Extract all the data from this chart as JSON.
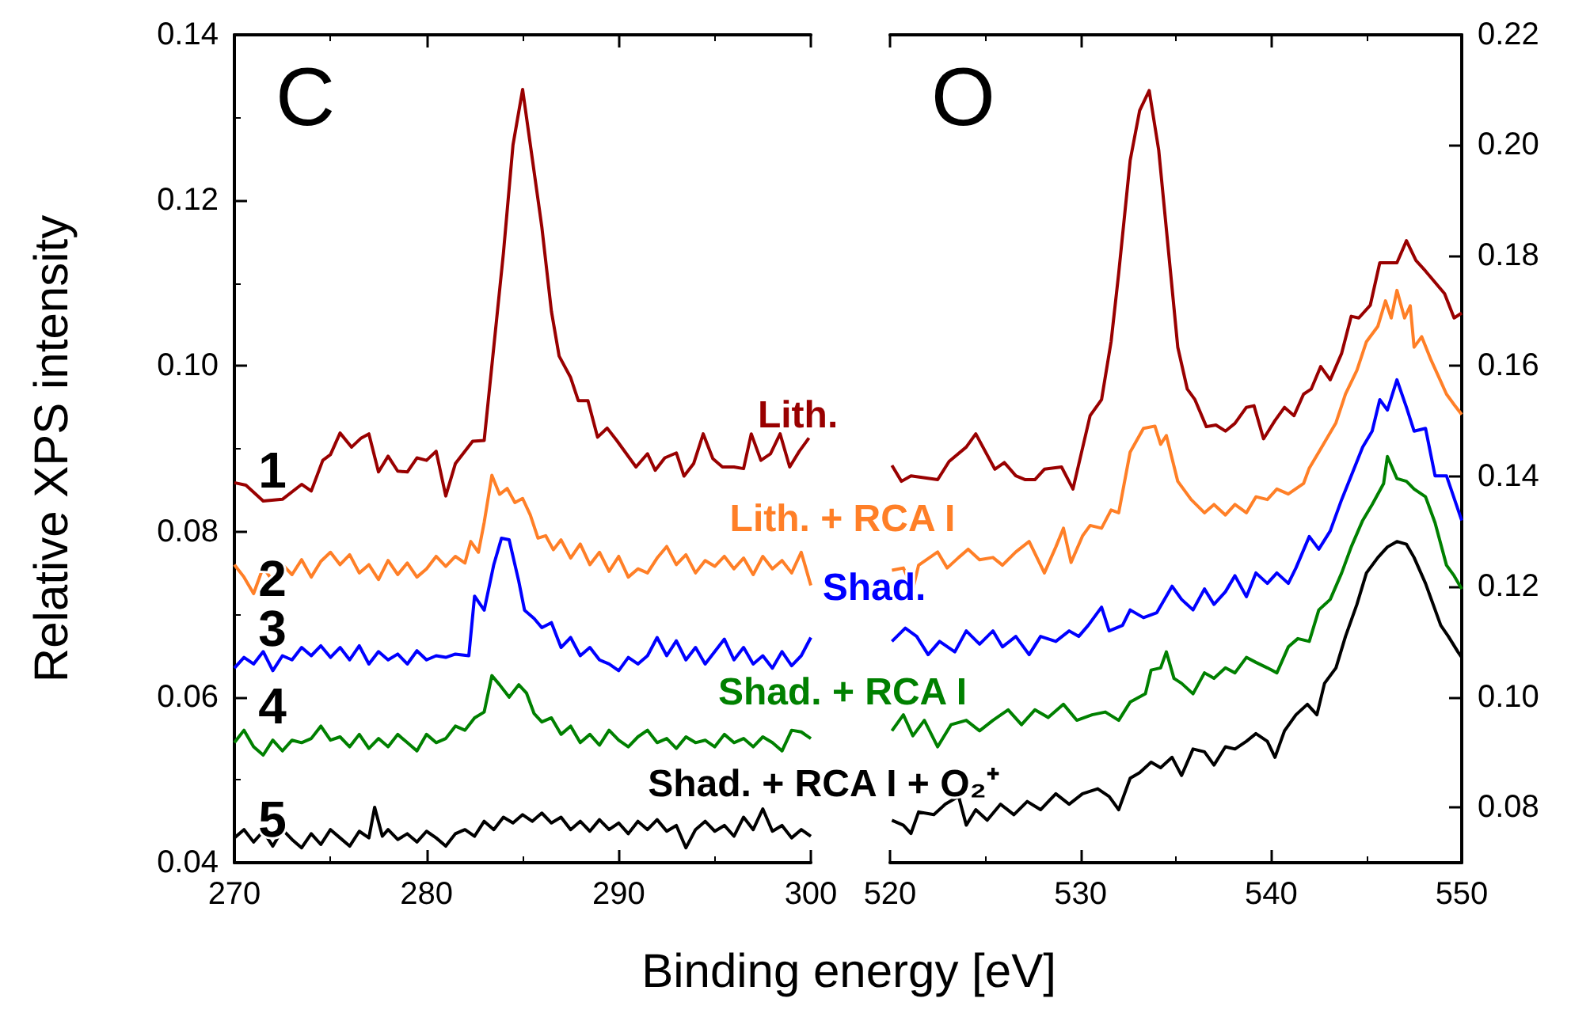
{
  "chart_data": [
    {
      "type": "line",
      "title": "C",
      "xlabel": "Binding energy [eV]",
      "ylabel": "Relative XPS intensity",
      "xlim": [
        270,
        300
      ],
      "xticks": [
        270,
        280,
        290,
        300
      ],
      "ylim": [
        0.04,
        0.14
      ],
      "yticks": [
        0.04,
        0.06,
        0.08,
        {
          "value": 0.1,
          "label": "0.10"
        },
        0.12,
        0.14
      ],
      "annotations": [
        "1",
        "2",
        "3",
        "4",
        "5"
      ],
      "series": [
        {
          "name": "Lith.",
          "color": "#990000",
          "x": [
            270.0,
            270.6,
            271.5,
            272.5,
            273.5,
            274.0,
            274.6,
            275.0,
            275.5,
            276.1,
            276.6,
            277.0,
            277.5,
            278.0,
            278.5,
            279.0,
            279.5,
            280.0,
            280.5,
            281.0,
            281.5,
            282.4,
            283.0,
            284.0,
            284.5,
            285.0,
            285.5,
            286.0,
            286.5,
            286.9,
            287.5,
            287.9,
            288.4,
            288.9,
            289.4,
            289.9,
            290.9,
            291.5,
            291.9,
            292.4,
            293.0,
            293.4,
            293.9,
            294.4,
            294.9,
            295.4,
            296.0,
            296.5,
            296.9,
            297.4,
            297.9,
            298.4,
            298.9,
            299.4,
            299.9
          ],
          "values": [
            0.0859,
            0.0856,
            0.0837,
            0.0839,
            0.0857,
            0.0849,
            0.0886,
            0.0893,
            0.0919,
            0.0902,
            0.0913,
            0.0918,
            0.0872,
            0.0891,
            0.0873,
            0.0872,
            0.0889,
            0.0886,
            0.0897,
            0.0843,
            0.0882,
            0.0909,
            0.091,
            0.1136,
            0.1267,
            0.1334,
            0.1251,
            0.1168,
            0.1066,
            0.1012,
            0.0986,
            0.0958,
            0.0958,
            0.0914,
            0.0925,
            0.091,
            0.0878,
            0.0894,
            0.0874,
            0.0889,
            0.0895,
            0.0867,
            0.0882,
            0.0918,
            0.0888,
            0.0878,
            0.0878,
            0.0876,
            0.0918,
            0.0886,
            0.0894,
            0.0918,
            0.0878,
            0.0897,
            0.0913
          ]
        },
        {
          "name": "Lith. + RCA I",
          "color": "#ff7f27",
          "x": [
            270,
            270.5,
            271,
            271.5,
            272,
            272.5,
            273,
            273.5,
            274,
            274.5,
            275,
            275.5,
            276,
            276.5,
            277,
            277.5,
            278,
            278.5,
            279,
            279.5,
            280,
            280.5,
            281,
            281.5,
            282,
            282.3,
            282.7,
            283,
            283.4,
            283.8,
            284.2,
            284.6,
            285,
            285.4,
            285.8,
            286.2,
            286.6,
            287,
            287.5,
            288,
            288.5,
            289,
            289.5,
            290,
            290.5,
            291,
            291.5,
            292,
            292.5,
            293,
            293.5,
            294,
            294.5,
            295,
            295.5,
            296,
            296.5,
            297,
            297.5,
            298,
            298.5,
            299,
            299.5,
            300
          ],
          "values": [
            0.076,
            0.0745,
            0.0725,
            0.0757,
            0.074,
            0.076,
            0.0748,
            0.0766,
            0.0745,
            0.0764,
            0.0775,
            0.076,
            0.0772,
            0.075,
            0.076,
            0.0742,
            0.0765,
            0.0748,
            0.0762,
            0.0745,
            0.0755,
            0.077,
            0.0758,
            0.077,
            0.0762,
            0.0788,
            0.0775,
            0.0811,
            0.0868,
            0.0845,
            0.0852,
            0.0835,
            0.084,
            0.082,
            0.0792,
            0.0795,
            0.0778,
            0.079,
            0.0768,
            0.0785,
            0.076,
            0.0775,
            0.0752,
            0.077,
            0.0745,
            0.0755,
            0.075,
            0.0768,
            0.0782,
            0.076,
            0.0772,
            0.075,
            0.0765,
            0.0758,
            0.077,
            0.0755,
            0.0768,
            0.0748,
            0.077,
            0.0755,
            0.0765,
            0.075,
            0.0775,
            0.0735
          ]
        },
        {
          "name": "Shad.",
          "color": "#0000ff",
          "x": [
            270,
            270.5,
            271,
            271.5,
            272,
            272.5,
            273,
            273.5,
            274,
            274.5,
            275,
            275.5,
            276,
            276.5,
            277,
            277.5,
            278,
            278.5,
            279,
            279.5,
            280,
            280.5,
            281,
            281.5,
            282.2,
            282.5,
            283,
            283.5,
            283.9,
            284.3,
            284.8,
            285.1,
            285.6,
            286,
            286.5,
            287,
            287.5,
            288,
            288.5,
            289,
            289.5,
            290,
            290.5,
            291,
            291.5,
            292,
            292.5,
            293,
            293.5,
            294,
            294.5,
            295,
            295.5,
            296,
            296.5,
            297,
            297.5,
            298,
            298.5,
            299,
            299.5,
            300
          ],
          "values": [
            0.0635,
            0.0648,
            0.064,
            0.0655,
            0.0632,
            0.065,
            0.0645,
            0.066,
            0.065,
            0.0662,
            0.0648,
            0.066,
            0.0645,
            0.0662,
            0.064,
            0.0655,
            0.0645,
            0.0652,
            0.064,
            0.0656,
            0.0645,
            0.065,
            0.0648,
            0.0652,
            0.065,
            0.0722,
            0.0705,
            0.076,
            0.0792,
            0.079,
            0.074,
            0.0705,
            0.0695,
            0.0684,
            0.069,
            0.066,
            0.0672,
            0.065,
            0.066,
            0.0645,
            0.064,
            0.0632,
            0.0648,
            0.064,
            0.065,
            0.0672,
            0.065,
            0.0668,
            0.0645,
            0.066,
            0.064,
            0.0655,
            0.067,
            0.0645,
            0.066,
            0.064,
            0.065,
            0.0635,
            0.0655,
            0.0638,
            0.065,
            0.0672
          ]
        },
        {
          "name": "Shad. + RCA I",
          "color": "#008000",
          "x": [
            270,
            270.5,
            271,
            271.5,
            272,
            272.5,
            273,
            273.5,
            274,
            274.5,
            275,
            275.5,
            276,
            276.5,
            277,
            277.5,
            278,
            278.5,
            279,
            279.5,
            280,
            280.5,
            281,
            281.5,
            282,
            282.5,
            283,
            283.4,
            283.8,
            284.3,
            284.8,
            285.2,
            285.6,
            286,
            286.5,
            287,
            287.5,
            288,
            288.5,
            289,
            289.5,
            290,
            290.5,
            291,
            291.5,
            292,
            292.5,
            293,
            293.5,
            294,
            294.5,
            295,
            295.5,
            296,
            296.5,
            297,
            297.5,
            298,
            298.5,
            299,
            299.5,
            300
          ],
          "values": [
            0.0545,
            0.056,
            0.054,
            0.053,
            0.0548,
            0.0535,
            0.0548,
            0.0545,
            0.055,
            0.0565,
            0.0548,
            0.0552,
            0.054,
            0.0555,
            0.0538,
            0.055,
            0.054,
            0.0555,
            0.0545,
            0.0535,
            0.0555,
            0.0545,
            0.055,
            0.0565,
            0.056,
            0.0575,
            0.0582,
            0.0626,
            0.0615,
            0.06,
            0.0615,
            0.0605,
            0.058,
            0.057,
            0.0575,
            0.0555,
            0.0565,
            0.0545,
            0.0555,
            0.0542,
            0.056,
            0.0548,
            0.054,
            0.0552,
            0.056,
            0.0545,
            0.055,
            0.0538,
            0.0552,
            0.0545,
            0.0548,
            0.054,
            0.0555,
            0.0545,
            0.055,
            0.054,
            0.0552,
            0.0545,
            0.0535,
            0.056,
            0.0558,
            0.055
          ]
        },
        {
          "name": "Shad. + RCA I + O₂⁺",
          "color": "#000000",
          "x": [
            270,
            270.5,
            271,
            271.5,
            272,
            272.5,
            273,
            273.5,
            274,
            274.5,
            275,
            275.5,
            276,
            276.5,
            277,
            277.3,
            277.7,
            278,
            278.5,
            279,
            279.5,
            280,
            280.5,
            281,
            281.5,
            282,
            282.5,
            283,
            283.5,
            284,
            284.5,
            285,
            285.5,
            286,
            286.5,
            287,
            287.5,
            288,
            288.5,
            289,
            289.5,
            290,
            290.5,
            291,
            291.5,
            292,
            292.5,
            293,
            293.5,
            294,
            294.5,
            295,
            295.5,
            296,
            296.5,
            297,
            297.5,
            298,
            298.5,
            299,
            299.5,
            300
          ],
          "values": [
            0.043,
            0.044,
            0.0425,
            0.0438,
            0.042,
            0.044,
            0.0428,
            0.0418,
            0.0435,
            0.0422,
            0.044,
            0.043,
            0.042,
            0.0438,
            0.043,
            0.0467,
            0.0432,
            0.044,
            0.0428,
            0.0435,
            0.0425,
            0.0438,
            0.043,
            0.042,
            0.0435,
            0.044,
            0.0432,
            0.045,
            0.044,
            0.0455,
            0.0448,
            0.0458,
            0.045,
            0.046,
            0.0448,
            0.0455,
            0.044,
            0.045,
            0.0438,
            0.0452,
            0.044,
            0.0448,
            0.0435,
            0.045,
            0.044,
            0.0452,
            0.0438,
            0.0445,
            0.0418,
            0.044,
            0.045,
            0.0438,
            0.0445,
            0.0432,
            0.0455,
            0.044,
            0.0465,
            0.0438,
            0.0445,
            0.043,
            0.044,
            0.0432
          ]
        }
      ]
    },
    {
      "type": "line",
      "title": "O",
      "xlim": [
        520,
        550
      ],
      "xticks": [
        520,
        530,
        540,
        550
      ],
      "y2lim": [
        0.07,
        0.22
      ],
      "y2ticks": [
        0.08,
        {
          "value": 0.1,
          "label": "0.10"
        },
        0.12,
        0.14,
        0.16,
        0.18,
        {
          "value": 0.2,
          "label": "0.20"
        },
        0.22
      ],
      "series": [
        {
          "axis": "y2",
          "color": "#990000",
          "x": [
            520.1,
            520.6,
            521.1,
            522.5,
            523.1,
            524.0,
            524.5,
            525.5,
            526.0,
            526.6,
            527.1,
            527.6,
            528.1,
            529.0,
            529.6,
            530.5,
            531.1,
            531.6,
            532.0,
            532.6,
            533.1,
            533.6,
            534.1,
            534.7,
            535.1,
            535.6,
            536.0,
            536.6,
            537.1,
            537.6,
            538.1,
            538.7,
            539.1,
            539.6,
            540.2,
            540.7,
            541.2,
            541.7,
            542.1,
            542.6,
            543.1,
            543.7,
            544.2,
            544.6,
            545.2,
            545.7,
            546.6,
            547.1,
            547.6,
            548.1,
            549.1,
            549.6,
            550.0
          ],
          "values": [
            0.142,
            0.1391,
            0.1401,
            0.1394,
            0.1427,
            0.1453,
            0.1477,
            0.1413,
            0.1425,
            0.1401,
            0.1394,
            0.1394,
            0.1413,
            0.1417,
            0.1377,
            0.151,
            0.1539,
            0.1644,
            0.1768,
            0.1972,
            0.2063,
            0.2099,
            0.1991,
            0.1777,
            0.1634,
            0.1558,
            0.1539,
            0.149,
            0.1493,
            0.1482,
            0.1496,
            0.1525,
            0.1528,
            0.1468,
            0.1501,
            0.1525,
            0.151,
            0.1549,
            0.1558,
            0.1599,
            0.1575,
            0.1623,
            0.169,
            0.1687,
            0.171,
            0.1787,
            0.1787,
            0.1827,
            0.1791,
            0.1772,
            0.1731,
            0.1687,
            0.1696
          ]
        },
        {
          "axis": "y2",
          "color": "#ff7f27",
          "x": [
            520.1,
            520.7,
            521.2,
            521.5,
            522.5,
            523.0,
            523.6,
            524.1,
            524.7,
            525.4,
            525.9,
            526.6,
            527.3,
            528.1,
            528.7,
            529.1,
            529.5,
            530.1,
            530.5,
            531.1,
            531.6,
            532.0,
            532.6,
            533.3,
            533.9,
            534.2,
            534.5,
            535.1,
            535.8,
            536.5,
            537.0,
            537.6,
            538.1,
            538.7,
            539.2,
            539.8,
            540.3,
            540.9,
            541.7,
            542.0,
            542.5,
            543.4,
            543.9,
            544.5,
            545.0,
            545.6,
            546.0,
            546.3,
            546.6,
            547.0,
            547.3,
            547.5,
            547.9,
            548.4,
            548.9,
            549.2,
            549.6,
            550.0
          ],
          "values": [
            0.123,
            0.1234,
            0.1196,
            0.1239,
            0.1263,
            0.1234,
            0.1253,
            0.1268,
            0.1249,
            0.1253,
            0.1239,
            0.1263,
            0.1282,
            0.1225,
            0.1272,
            0.1306,
            0.1244,
            0.1292,
            0.1311,
            0.1306,
            0.1339,
            0.1334,
            0.1444,
            0.1487,
            0.1491,
            0.1458,
            0.1474,
            0.1391,
            0.1358,
            0.1334,
            0.1349,
            0.133,
            0.1349,
            0.1334,
            0.1363,
            0.1358,
            0.1377,
            0.1368,
            0.1387,
            0.1415,
            0.1444,
            0.1497,
            0.1549,
            0.1592,
            0.1644,
            0.1672,
            0.1718,
            0.1687,
            0.1737,
            0.1687,
            0.1709,
            0.1634,
            0.1653,
            0.161,
            0.1572,
            0.1549,
            0.153,
            0.1512
          ]
        },
        {
          "axis": "y2",
          "color": "#0000ff",
          "x": [
            520.1,
            520.8,
            521.4,
            522.0,
            522.6,
            523.4,
            524.0,
            524.7,
            525.4,
            525.9,
            526.6,
            527.3,
            527.9,
            528.7,
            529.4,
            529.9,
            530.4,
            531.1,
            531.5,
            532.2,
            532.6,
            533.3,
            534.0,
            534.8,
            535.3,
            535.9,
            536.5,
            537.0,
            537.6,
            538.1,
            538.7,
            539.2,
            539.8,
            540.3,
            540.9,
            541.3,
            542.0,
            542.5,
            543.1,
            543.7,
            544.2,
            544.8,
            545.3,
            545.7,
            546.1,
            546.6,
            547.1,
            547.5,
            548.1,
            548.6,
            549.2,
            550.0
          ],
          "values": [
            0.1101,
            0.1125,
            0.111,
            0.1077,
            0.1101,
            0.1082,
            0.112,
            0.1096,
            0.112,
            0.1091,
            0.111,
            0.1077,
            0.111,
            0.1101,
            0.112,
            0.111,
            0.113,
            0.1163,
            0.112,
            0.113,
            0.1158,
            0.1144,
            0.1153,
            0.1201,
            0.1177,
            0.1158,
            0.1196,
            0.1168,
            0.1191,
            0.122,
            0.1182,
            0.1225,
            0.1206,
            0.1225,
            0.1206,
            0.1234,
            0.1291,
            0.1268,
            0.1301,
            0.1358,
            0.1401,
            0.1453,
            0.1482,
            0.1539,
            0.152,
            0.1575,
            0.1525,
            0.1482,
            0.1487,
            0.1401,
            0.1401,
            0.132
          ]
        },
        {
          "axis": "y2",
          "color": "#008000",
          "x": [
            520.1,
            520.7,
            521.2,
            521.8,
            522.5,
            523.2,
            524.0,
            524.7,
            525.4,
            526.2,
            526.9,
            527.6,
            528.3,
            529.1,
            529.8,
            530.6,
            531.3,
            532.0,
            532.6,
            533.4,
            533.7,
            534.2,
            534.5,
            534.9,
            535.3,
            535.9,
            536.5,
            537.0,
            537.6,
            538.1,
            538.7,
            539.2,
            539.8,
            540.3,
            540.9,
            541.4,
            542.0,
            542.5,
            543.1,
            543.7,
            544.2,
            544.8,
            545.3,
            545.9,
            546.1,
            546.6,
            547.1,
            547.5,
            548.1,
            548.6,
            549.2,
            549.6,
            550.0
          ],
          "values": [
            0.0939,
            0.0968,
            0.093,
            0.0958,
            0.091,
            0.095,
            0.0958,
            0.0939,
            0.0958,
            0.0977,
            0.095,
            0.0977,
            0.0963,
            0.0987,
            0.0958,
            0.0968,
            0.0973,
            0.0958,
            0.0991,
            0.1006,
            0.1049,
            0.1053,
            0.1082,
            0.1034,
            0.1025,
            0.1006,
            0.1044,
            0.1034,
            0.1053,
            0.1044,
            0.1072,
            0.1063,
            0.1053,
            0.1044,
            0.1091,
            0.1106,
            0.1101,
            0.1158,
            0.1177,
            0.1225,
            0.1272,
            0.132,
            0.1349,
            0.1387,
            0.1436,
            0.1396,
            0.1391,
            0.1377,
            0.1363,
            0.1316,
            0.1239,
            0.122,
            0.1196
          ]
        },
        {
          "axis": "y2",
          "color": "#000000",
          "x": [
            520.1,
            520.7,
            521.1,
            521.5,
            522.3,
            522.9,
            523.6,
            524.0,
            524.5,
            525.1,
            525.8,
            526.5,
            527.2,
            527.9,
            528.7,
            529.4,
            530.1,
            530.9,
            531.5,
            532.0,
            532.6,
            533.1,
            533.7,
            534.2,
            534.8,
            535.3,
            535.9,
            536.5,
            537.0,
            537.6,
            538.1,
            538.7,
            539.2,
            539.8,
            540.2,
            540.7,
            541.3,
            541.9,
            542.4,
            542.8,
            543.4,
            543.9,
            544.5,
            545.0,
            545.6,
            546.1,
            546.6,
            547.1,
            547.5,
            548.1,
            548.5,
            548.9,
            549.3,
            549.8,
            550.0
          ],
          "values": [
            0.0777,
            0.0768,
            0.0753,
            0.0792,
            0.0787,
            0.0806,
            0.082,
            0.0768,
            0.0796,
            0.0777,
            0.0806,
            0.0787,
            0.0811,
            0.0796,
            0.0825,
            0.0806,
            0.0825,
            0.0834,
            0.082,
            0.0796,
            0.0853,
            0.0863,
            0.0882,
            0.0872,
            0.0891,
            0.0858,
            0.0906,
            0.0901,
            0.0877,
            0.091,
            0.0906,
            0.092,
            0.0934,
            0.092,
            0.0891,
            0.0939,
            0.0968,
            0.0987,
            0.0968,
            0.1025,
            0.1053,
            0.111,
            0.1168,
            0.1225,
            0.1253,
            0.1272,
            0.1282,
            0.1277,
            0.1253,
            0.1206,
            0.1168,
            0.113,
            0.111,
            0.1082,
            0.1072
          ]
        }
      ]
    }
  ]
}
